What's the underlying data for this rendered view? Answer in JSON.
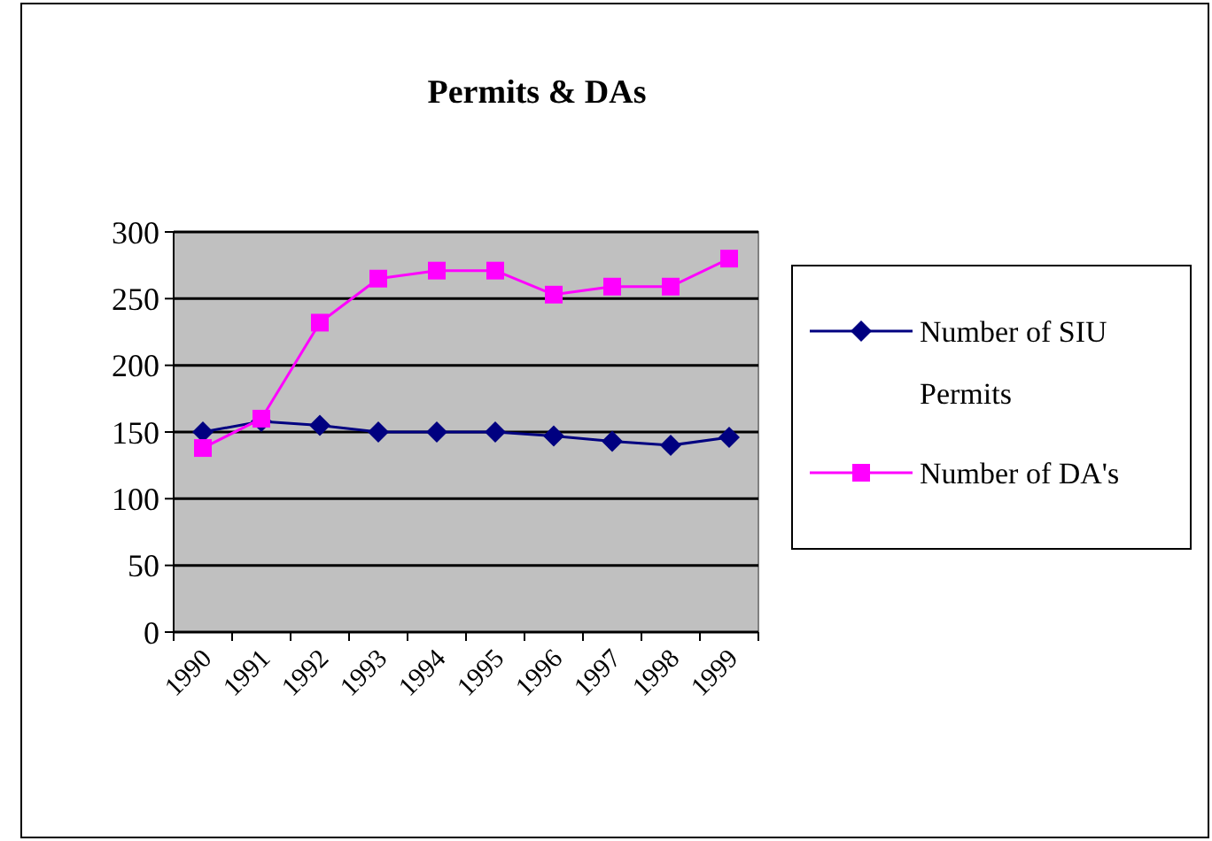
{
  "chart_data": {
    "type": "line",
    "title": "Permits & DAs",
    "categories": [
      "1990",
      "1991",
      "1992",
      "1993",
      "1994",
      "1995",
      "1996",
      "1997",
      "1998",
      "1999"
    ],
    "series": [
      {
        "name": "Number of SIU Permits",
        "color": "#000080",
        "marker": "diamond",
        "values": [
          150,
          158,
          155,
          150,
          150,
          150,
          147,
          143,
          140,
          146
        ]
      },
      {
        "name": "Number of DA's",
        "color": "#ff00ff",
        "marker": "square",
        "values": [
          138,
          160,
          232,
          265,
          271,
          271,
          253,
          259,
          259,
          280
        ]
      }
    ],
    "ylim": [
      0,
      300
    ],
    "yticks": [
      0,
      50,
      100,
      150,
      200,
      250,
      300
    ],
    "grid": "y",
    "legend": "right"
  }
}
